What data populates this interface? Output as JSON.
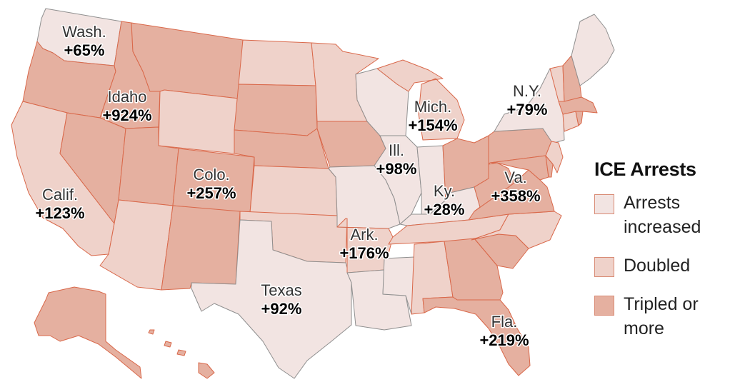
{
  "colors": {
    "increased": "#f2e4e2",
    "doubled": "#efd2ca",
    "tripled": "#e5b0a0",
    "border": "#d9684a",
    "inner_border": "#8f8f8f"
  },
  "legend": {
    "title": "ICE Arrests",
    "items": [
      {
        "key": "increased",
        "label_line1": "Arrests",
        "label_line2": "increased"
      },
      {
        "key": "doubled",
        "label_line1": "Doubled",
        "label_line2": ""
      },
      {
        "key": "tripled",
        "label_line1": "Tripled or",
        "label_line2": "more"
      }
    ]
  },
  "labels": [
    {
      "name": "Wash.",
      "value": "+65%"
    },
    {
      "name": "Idaho",
      "value": "+924%"
    },
    {
      "name": "Calif.",
      "value": "+123%"
    },
    {
      "name": "Colo.",
      "value": "+257%"
    },
    {
      "name": "Texas",
      "value": "+92%"
    },
    {
      "name": "Ark.",
      "value": "+176%"
    },
    {
      "name": "Ill.",
      "value": "+98%"
    },
    {
      "name": "Mich.",
      "value": "+154%"
    },
    {
      "name": "Ky.",
      "value": "+28%"
    },
    {
      "name": "N.Y.",
      "value": "+79%"
    },
    {
      "name": "Va.",
      "value": "+358%"
    },
    {
      "name": "Fla.",
      "value": "+219%"
    }
  ],
  "states": [
    {
      "id": "wa",
      "cat": "increased"
    },
    {
      "id": "or",
      "cat": "tripled"
    },
    {
      "id": "ca",
      "cat": "doubled"
    },
    {
      "id": "id",
      "cat": "tripled"
    },
    {
      "id": "nv",
      "cat": "tripled"
    },
    {
      "id": "mt",
      "cat": "tripled"
    },
    {
      "id": "wy",
      "cat": "doubled"
    },
    {
      "id": "ut",
      "cat": "tripled"
    },
    {
      "id": "az",
      "cat": "doubled"
    },
    {
      "id": "co",
      "cat": "tripled"
    },
    {
      "id": "nm",
      "cat": "tripled"
    },
    {
      "id": "nd",
      "cat": "doubled"
    },
    {
      "id": "sd",
      "cat": "tripled"
    },
    {
      "id": "ne",
      "cat": "tripled"
    },
    {
      "id": "ks",
      "cat": "doubled"
    },
    {
      "id": "ok",
      "cat": "doubled"
    },
    {
      "id": "tx",
      "cat": "increased"
    },
    {
      "id": "mn",
      "cat": "doubled"
    },
    {
      "id": "ia",
      "cat": "tripled"
    },
    {
      "id": "mo",
      "cat": "increased"
    },
    {
      "id": "ar",
      "cat": "doubled"
    },
    {
      "id": "la",
      "cat": "increased"
    },
    {
      "id": "wi",
      "cat": "increased"
    },
    {
      "id": "il",
      "cat": "increased"
    },
    {
      "id": "ms",
      "cat": "increased"
    },
    {
      "id": "mi",
      "cat": "doubled"
    },
    {
      "id": "in",
      "cat": "increased"
    },
    {
      "id": "ky",
      "cat": "increased"
    },
    {
      "id": "tn",
      "cat": "doubled"
    },
    {
      "id": "al",
      "cat": "doubled"
    },
    {
      "id": "oh",
      "cat": "tripled"
    },
    {
      "id": "ga",
      "cat": "tripled"
    },
    {
      "id": "fl",
      "cat": "tripled"
    },
    {
      "id": "sc",
      "cat": "tripled"
    },
    {
      "id": "nc",
      "cat": "doubled"
    },
    {
      "id": "va",
      "cat": "tripled"
    },
    {
      "id": "wv",
      "cat": "tripled"
    },
    {
      "id": "pa",
      "cat": "tripled"
    },
    {
      "id": "ny",
      "cat": "increased"
    },
    {
      "id": "md",
      "cat": "tripled"
    },
    {
      "id": "de",
      "cat": "tripled"
    },
    {
      "id": "nj",
      "cat": "doubled"
    },
    {
      "id": "ct",
      "cat": "doubled"
    },
    {
      "id": "ri",
      "cat": "tripled"
    },
    {
      "id": "ma",
      "cat": "tripled"
    },
    {
      "id": "vt",
      "cat": "doubled"
    },
    {
      "id": "nh",
      "cat": "tripled"
    },
    {
      "id": "me",
      "cat": "increased"
    },
    {
      "id": "ak",
      "cat": "tripled"
    },
    {
      "id": "hi",
      "cat": "tripled"
    }
  ]
}
